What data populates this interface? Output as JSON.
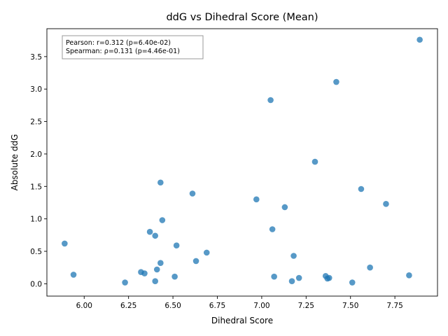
{
  "chart_data": {
    "type": "scatter",
    "title": "ddG vs Dihedral Score (Mean)",
    "xlabel": "Dihedral Score",
    "ylabel": "Absolute ddG",
    "xlim": [
      5.79,
      7.99
    ],
    "ylim": [
      -0.19,
      3.93
    ],
    "xticks": [
      6.0,
      6.25,
      6.5,
      6.75,
      7.0,
      7.25,
      7.5,
      7.75
    ],
    "xtick_labels": [
      "6.00",
      "6.25",
      "6.50",
      "6.75",
      "7.00",
      "7.25",
      "7.50",
      "7.75"
    ],
    "yticks": [
      0.0,
      0.5,
      1.0,
      1.5,
      2.0,
      2.5,
      3.0,
      3.5
    ],
    "ytick_labels": [
      "0.0",
      "0.5",
      "1.0",
      "1.5",
      "2.0",
      "2.5",
      "3.0",
      "3.5"
    ],
    "grid": false,
    "marker_color": "#1f77b4",
    "annotation": {
      "lines": [
        "Pearson: r=0.312 (p=6.40e-02)",
        "Spearman: ρ=0.131 (p=4.46e-01)"
      ],
      "position": "top-left"
    },
    "points": [
      {
        "x": 5.89,
        "y": 0.62
      },
      {
        "x": 5.94,
        "y": 0.14
      },
      {
        "x": 6.23,
        "y": 0.02
      },
      {
        "x": 6.32,
        "y": 0.18
      },
      {
        "x": 6.34,
        "y": 0.16
      },
      {
        "x": 6.37,
        "y": 0.8
      },
      {
        "x": 6.4,
        "y": 0.74
      },
      {
        "x": 6.4,
        "y": 0.04
      },
      {
        "x": 6.41,
        "y": 0.22
      },
      {
        "x": 6.43,
        "y": 1.56
      },
      {
        "x": 6.43,
        "y": 0.32
      },
      {
        "x": 6.44,
        "y": 0.98
      },
      {
        "x": 6.51,
        "y": 0.11
      },
      {
        "x": 6.52,
        "y": 0.59
      },
      {
        "x": 6.61,
        "y": 1.39
      },
      {
        "x": 6.63,
        "y": 0.35
      },
      {
        "x": 6.69,
        "y": 0.48
      },
      {
        "x": 6.97,
        "y": 1.3
      },
      {
        "x": 7.05,
        "y": 2.83
      },
      {
        "x": 7.06,
        "y": 0.84
      },
      {
        "x": 7.07,
        "y": 0.11
      },
      {
        "x": 7.13,
        "y": 1.18
      },
      {
        "x": 7.17,
        "y": 0.04
      },
      {
        "x": 7.18,
        "y": 0.43
      },
      {
        "x": 7.21,
        "y": 0.09
      },
      {
        "x": 7.3,
        "y": 1.88
      },
      {
        "x": 7.36,
        "y": 0.12
      },
      {
        "x": 7.37,
        "y": 0.08
      },
      {
        "x": 7.38,
        "y": 0.09
      },
      {
        "x": 7.42,
        "y": 3.11
      },
      {
        "x": 7.51,
        "y": 0.02
      },
      {
        "x": 7.56,
        "y": 1.46
      },
      {
        "x": 7.61,
        "y": 0.25
      },
      {
        "x": 7.7,
        "y": 1.23
      },
      {
        "x": 7.83,
        "y": 0.13
      },
      {
        "x": 7.89,
        "y": 3.76
      }
    ]
  }
}
